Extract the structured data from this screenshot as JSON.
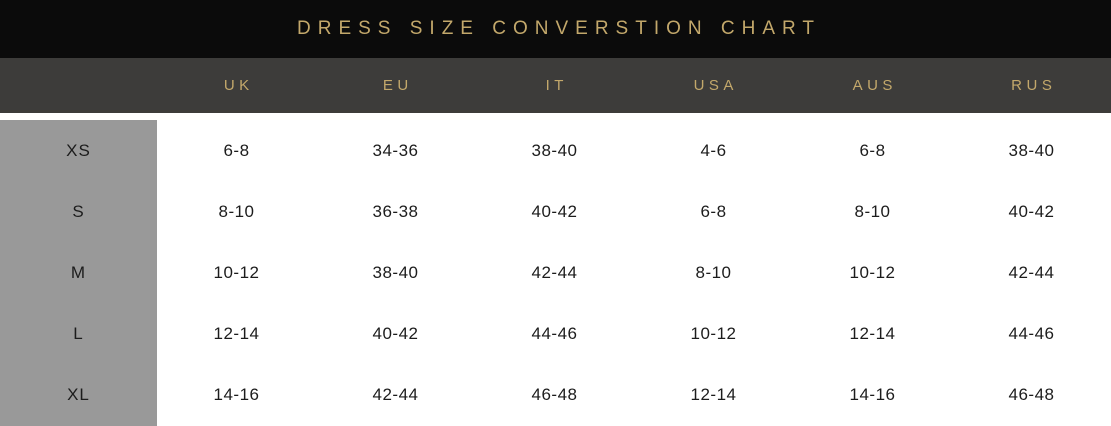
{
  "title": "DRESS SIZE CONVERSTION CHART",
  "colors": {
    "title_bar_bg": "#0b0b0b",
    "gold_accent": "#c3a86b",
    "header_row_bg": "#3d3c3a",
    "size_column_bg": "#999999",
    "body_text": "#1c1c1c",
    "body_bg": "#ffffff"
  },
  "chart_data": {
    "type": "table",
    "title": "DRESS SIZE CONVERSTION CHART",
    "columns": [
      "UK",
      "EU",
      "IT",
      "USA",
      "AUS",
      "RUS"
    ],
    "row_labels": [
      "XS",
      "S",
      "M",
      "L",
      "XL"
    ],
    "rows": [
      [
        "6-8",
        "34-36",
        "38-40",
        "4-6",
        "6-8",
        "38-40"
      ],
      [
        "8-10",
        "36-38",
        "40-42",
        "6-8",
        "8-10",
        "40-42"
      ],
      [
        "10-12",
        "38-40",
        "42-44",
        "8-10",
        "10-12",
        "42-44"
      ],
      [
        "12-14",
        "40-42",
        "44-46",
        "10-12",
        "12-14",
        "44-46"
      ],
      [
        "14-16",
        "42-44",
        "46-48",
        "12-14",
        "14-16",
        "46-48"
      ]
    ]
  }
}
